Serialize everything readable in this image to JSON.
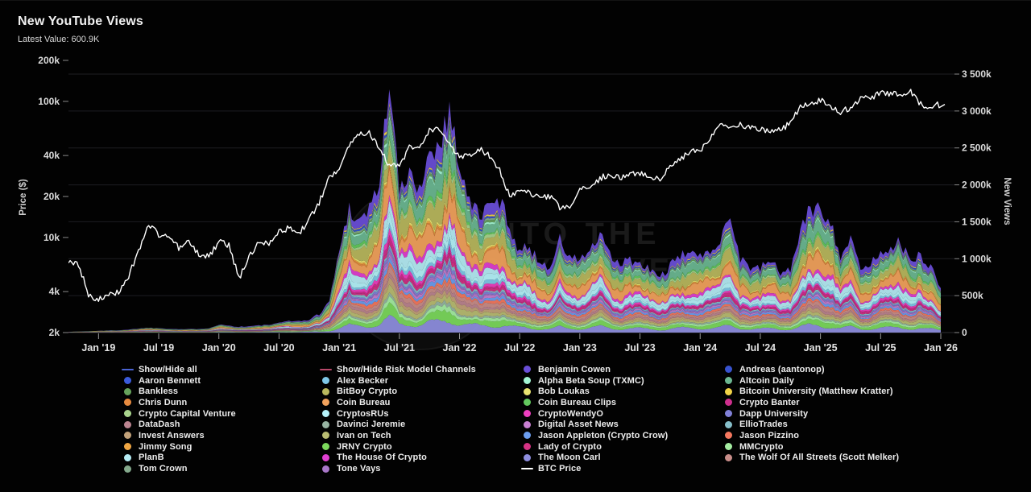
{
  "header": {
    "title": "New YouTube Views",
    "latest_label": "Latest Value:",
    "latest_value": "600.9K"
  },
  "watermark": {
    "line1": "INTO THE",
    "line2": "CRYPTOVERSE"
  },
  "chart_data": {
    "type": "area",
    "stacked": true,
    "x_start_month": "2018-10",
    "months_count": 88,
    "x_ticks": [
      {
        "index": 3,
        "label": "Jan '19"
      },
      {
        "index": 9,
        "label": "Jul '19"
      },
      {
        "index": 15,
        "label": "Jan '20"
      },
      {
        "index": 21,
        "label": "Jul '20"
      },
      {
        "index": 27,
        "label": "Jan '21"
      },
      {
        "index": 33,
        "label": "Jul '21"
      },
      {
        "index": 39,
        "label": "Jan '22"
      },
      {
        "index": 45,
        "label": "Jul '22"
      },
      {
        "index": 51,
        "label": "Jan '23"
      },
      {
        "index": 57,
        "label": "Jul '23"
      },
      {
        "index": 63,
        "label": "Jan '24"
      },
      {
        "index": 69,
        "label": "Jul '24"
      },
      {
        "index": 75,
        "label": "Jan '25"
      },
      {
        "index": 81,
        "label": "Jul '25"
      },
      {
        "index": 87,
        "label": "Jan '26"
      }
    ],
    "left_axis": {
      "label": "Price ($)",
      "scale": "log",
      "tick_labels": [
        "2k",
        "4k",
        "10k",
        "20k",
        "40k",
        "100k",
        "200k"
      ],
      "tick_values": [
        2000,
        4000,
        10000,
        20000,
        40000,
        100000,
        200000
      ],
      "range": [
        2000,
        200000
      ]
    },
    "right_axis": {
      "label": "New Views",
      "scale": "linear",
      "tick_labels": [
        "0",
        "500k",
        "1 000k",
        "1 500k",
        "2 000k",
        "2 500k",
        "3 000k",
        "3 500k"
      ],
      "tick_values": [
        0,
        500000,
        1000000,
        1500000,
        2000000,
        2500000,
        3000000,
        3500000
      ],
      "range": [
        0,
        3500000
      ]
    },
    "grid": "horizontal-right-axis",
    "legend_position": "bottom",
    "total_views_k": [
      10,
      14,
      18,
      25,
      28,
      32,
      40,
      55,
      65,
      60,
      52,
      46,
      46,
      50,
      58,
      110,
      92,
      78,
      85,
      95,
      105,
      125,
      165,
      150,
      175,
      250,
      420,
      1100,
      1700,
      1500,
      1700,
      2000,
      3450,
      1900,
      2100,
      2000,
      2400,
      2600,
      3000,
      2300,
      1750,
      1600,
      1700,
      1800,
      1450,
      1100,
      1150,
      950,
      900,
      1250,
      1000,
      1000,
      1100,
      1300,
      1050,
      900,
      1000,
      900,
      850,
      750,
      900,
      1000,
      1150,
      1000,
      1100,
      1300,
      1600,
      1000,
      900,
      850,
      1000,
      800,
      850,
      1400,
      1650,
      1700,
      1500,
      1050,
      1250,
      850,
      950,
      1050,
      1200,
      1200,
      950,
      1050,
      900,
      601
    ],
    "btc_price_usd": [
      6500,
      6300,
      3800,
      3500,
      3700,
      4000,
      5200,
      8000,
      12500,
      10500,
      10200,
      8400,
      9200,
      7500,
      7200,
      9300,
      8800,
      5000,
      7100,
      9400,
      9200,
      11000,
      11700,
      10700,
      13500,
      18000,
      27000,
      33000,
      48000,
      58000,
      60000,
      45000,
      34000,
      33000,
      46000,
      44000,
      61000,
      62000,
      48000,
      40000,
      40000,
      45000,
      40000,
      31000,
      20000,
      22000,
      21000,
      19500,
      20000,
      16500,
      16800,
      22000,
      23500,
      27000,
      29500,
      27000,
      30000,
      29500,
      27500,
      26500,
      33000,
      37000,
      43000,
      42500,
      55000,
      68000,
      64000,
      67000,
      64000,
      62000,
      59000,
      62000,
      69000,
      93000,
      97000,
      102000,
      90000,
      84000,
      90000,
      105000,
      106000,
      115000,
      113000,
      113000,
      120000,
      95000,
      92000,
      95000
    ],
    "btc_line_color": "#ffffff",
    "channels_stack_bottom_to_top": [
      {
        "name": "The Moon Carl",
        "color": "#8f8fe0",
        "weight": 0.055
      },
      {
        "name": "JRNY Crypto",
        "color": "#7cd95c",
        "weight": 0.04
      },
      {
        "name": "MMCrypto",
        "color": "#a5eda2",
        "weight": 0.02
      },
      {
        "name": "Davinci Jeremie",
        "color": "#97b4a2",
        "weight": 0.015
      },
      {
        "name": "Ivan on Tech",
        "color": "#b9bc72",
        "weight": 0.03
      },
      {
        "name": "Invest Answers",
        "color": "#c2a179",
        "weight": 0.025
      },
      {
        "name": "DataDash",
        "color": "#bb8490",
        "weight": 0.02
      },
      {
        "name": "The Wolf Of All Streets (Scott Melker)",
        "color": "#c98e8a",
        "weight": 0.025
      },
      {
        "name": "Jason Pizzino",
        "color": "#f4785f",
        "weight": 0.02
      },
      {
        "name": "Jason Appleton (Crypto Crow)",
        "color": "#6c9ef0",
        "weight": 0.02
      },
      {
        "name": "Digital Asset News",
        "color": "#c87fd2",
        "weight": 0.015
      },
      {
        "name": "Tone Vays",
        "color": "#a877c9",
        "weight": 0.01
      },
      {
        "name": "Dapp University",
        "color": "#8181d8",
        "weight": 0.015
      },
      {
        "name": "EllioTrades",
        "color": "#86bfca",
        "weight": 0.015
      },
      {
        "name": "Lady of Crypto",
        "color": "#d63384",
        "weight": 0.015
      },
      {
        "name": "Crypto Banter",
        "color": "#cf2f8e",
        "weight": 0.02
      },
      {
        "name": "CryptoWendyO",
        "color": "#ef3fc0",
        "weight": 0.02
      },
      {
        "name": "Alex Becker",
        "color": "#7fc8e8",
        "weight": 0.025
      },
      {
        "name": "CryptosRUs",
        "color": "#b5f3fa",
        "weight": 0.035
      },
      {
        "name": "PlanB",
        "color": "#b5ecf4",
        "weight": 0.05
      },
      {
        "name": "The House Of Crypto",
        "color": "#e13fd2",
        "weight": 0.03
      },
      {
        "name": "Coin Bureau",
        "color": "#f2a25c",
        "weight": 0.1
      },
      {
        "name": "Chris Dunn",
        "color": "#e78a3f",
        "weight": 0.01
      },
      {
        "name": "Jimmy Song",
        "color": "#f0a643",
        "weight": 0.01
      },
      {
        "name": "Bob Loukas",
        "color": "#e9e470",
        "weight": 0.012
      },
      {
        "name": "BitBoy Crypto",
        "color": "#b9b85e",
        "weight": 0.09
      },
      {
        "name": "Crypto Capital Venture",
        "color": "#a9d48d",
        "weight": 0.02
      },
      {
        "name": "Coin Bureau Clips",
        "color": "#63c95e",
        "weight": 0.02
      },
      {
        "name": "Altcoin Daily",
        "color": "#6cb892",
        "weight": 0.08
      },
      {
        "name": "Alpha Beta Soup (TXMC)",
        "color": "#a3f5d3",
        "weight": 0.012
      },
      {
        "name": "Bankless",
        "color": "#66a35c",
        "weight": 0.015
      },
      {
        "name": "Tom Crown",
        "color": "#84a98c",
        "weight": 0.012
      },
      {
        "name": "Aaron Bennett",
        "color": "#3b5bdb",
        "weight": 0.008
      },
      {
        "name": "Andreas (aantonop)",
        "color": "#3853cf",
        "weight": 0.008
      },
      {
        "name": "Bitcoin University (Matthew Kratter)",
        "color": "#f2d347",
        "weight": 0.01
      },
      {
        "name": "Benjamin Cowen",
        "color": "#6a4fd8",
        "weight": 0.065
      }
    ]
  },
  "legend": {
    "columns": [
      [
        {
          "type": "line",
          "color": "#4a63d3",
          "label": "Show/Hide all"
        },
        {
          "type": "dot",
          "color": "#3b5bdb",
          "label": "Aaron Bennett"
        },
        {
          "type": "dot",
          "color": "#66a35c",
          "label": "Bankless"
        },
        {
          "type": "dot",
          "color": "#e78a3f",
          "label": "Chris Dunn"
        },
        {
          "type": "dot",
          "color": "#a9d48d",
          "label": "Crypto Capital Venture"
        },
        {
          "type": "dot",
          "color": "#bb8490",
          "label": "DataDash"
        },
        {
          "type": "dot",
          "color": "#c2a179",
          "label": "Invest Answers"
        },
        {
          "type": "dot",
          "color": "#f0a643",
          "label": "Jimmy Song"
        },
        {
          "type": "dot",
          "color": "#b5ecf4",
          "label": "PlanB"
        },
        {
          "type": "dot",
          "color": "#84a98c",
          "label": "Tom Crown"
        }
      ],
      [
        {
          "type": "line",
          "color": "#b8486a",
          "label": "Show/Hide Risk Model Channels"
        },
        {
          "type": "dot",
          "color": "#7fc8e8",
          "label": "Alex Becker"
        },
        {
          "type": "dot",
          "color": "#b9b85e",
          "label": "BitBoy Crypto"
        },
        {
          "type": "dot",
          "color": "#f2a25c",
          "label": "Coin Bureau"
        },
        {
          "type": "dot",
          "color": "#b5f3fa",
          "label": "CryptosRUs"
        },
        {
          "type": "dot",
          "color": "#97b4a2",
          "label": "Davinci Jeremie"
        },
        {
          "type": "dot",
          "color": "#b9bc72",
          "label": "Ivan on Tech"
        },
        {
          "type": "dot",
          "color": "#7cd95c",
          "label": "JRNY Crypto"
        },
        {
          "type": "dot",
          "color": "#e13fd2",
          "label": "The House Of Crypto"
        },
        {
          "type": "dot",
          "color": "#a877c9",
          "label": "Tone Vays"
        }
      ],
      [
        {
          "type": "dot",
          "color": "#6a4fd8",
          "label": "Benjamin Cowen"
        },
        {
          "type": "dot",
          "color": "#a3f5d3",
          "label": "Alpha Beta Soup (TXMC)"
        },
        {
          "type": "dot",
          "color": "#e9e470",
          "label": "Bob Loukas"
        },
        {
          "type": "dot",
          "color": "#63c95e",
          "label": "Coin Bureau Clips"
        },
        {
          "type": "dot",
          "color": "#ef3fc0",
          "label": "CryptoWendyO"
        },
        {
          "type": "dot",
          "color": "#c87fd2",
          "label": "Digital Asset News"
        },
        {
          "type": "dot",
          "color": "#6c9ef0",
          "label": "Jason Appleton (Crypto Crow)"
        },
        {
          "type": "dot",
          "color": "#d63384",
          "label": "Lady of Crypto"
        },
        {
          "type": "dot",
          "color": "#8f8fe0",
          "label": "The Moon Carl"
        },
        {
          "type": "line",
          "color": "#ffffff",
          "label": "BTC Price"
        }
      ],
      [
        {
          "type": "dot",
          "color": "#3853cf",
          "label": "Andreas (aantonop)"
        },
        {
          "type": "dot",
          "color": "#6cb892",
          "label": "Altcoin Daily"
        },
        {
          "type": "dot",
          "color": "#f2d347",
          "label": "Bitcoin University (Matthew Kratter)"
        },
        {
          "type": "dot",
          "color": "#cf2f8e",
          "label": "Crypto Banter"
        },
        {
          "type": "dot",
          "color": "#8181d8",
          "label": "Dapp University"
        },
        {
          "type": "dot",
          "color": "#86bfca",
          "label": "EllioTrades"
        },
        {
          "type": "dot",
          "color": "#f4785f",
          "label": "Jason Pizzino"
        },
        {
          "type": "dot",
          "color": "#a5eda2",
          "label": "MMCrypto"
        },
        {
          "type": "dot",
          "color": "#c98e8a",
          "label": "The Wolf Of All Streets (Scott Melker)"
        }
      ]
    ]
  }
}
